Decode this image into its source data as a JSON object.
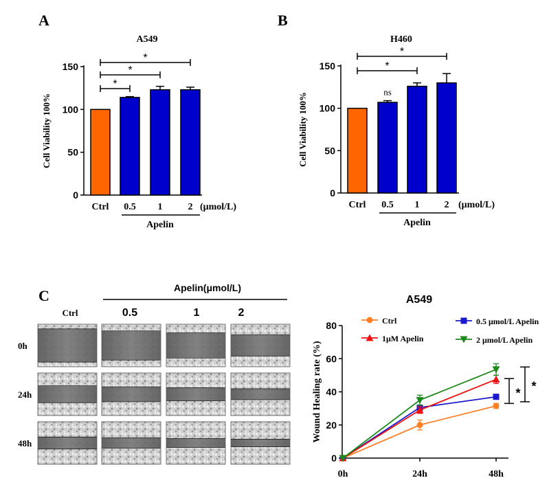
{
  "panels": {
    "a": "A",
    "b": "B",
    "c": "C"
  },
  "colors": {
    "ctrl_bar": "#ff6600",
    "apelin_bar": "#0000cc",
    "ctrl_line": "#ff7f27",
    "apelin_05": "#1a1acc",
    "apelin_1": "#ee1111",
    "apelin_2": "#1a8a1a"
  },
  "chart_data": [
    {
      "type": "bar",
      "title": "A549",
      "ylabel": "Cell Viability  100%",
      "ylim": [
        0,
        150
      ],
      "yticks": [
        "0",
        "50",
        "100",
        "150"
      ],
      "categories": [
        "Ctrl",
        "0.5",
        "1",
        "2"
      ],
      "unit": "(μmol/L)",
      "group_label": "Apelin",
      "values": [
        100,
        114,
        123,
        123
      ],
      "errors": [
        0,
        1,
        4,
        3
      ],
      "significance": [
        {
          "from": 0,
          "to": 1,
          "label": "*"
        },
        {
          "from": 0,
          "to": 2,
          "label": "*"
        },
        {
          "from": 0,
          "to": 3,
          "label": "*"
        }
      ]
    },
    {
      "type": "bar",
      "title": "H460",
      "ylabel": "Cell Viability  100%",
      "ylim": [
        0,
        150
      ],
      "yticks": [
        "0",
        "50",
        "100",
        "150"
      ],
      "categories": [
        "Ctrl",
        "0.5",
        "1",
        "2"
      ],
      "unit": "(μmol/L)",
      "group_label": "Apelin",
      "values": [
        100,
        107,
        126,
        130
      ],
      "errors": [
        0,
        2,
        4,
        11
      ],
      "value_labels": [
        "",
        "ns",
        "",
        ""
      ],
      "significance": [
        {
          "from": 0,
          "to": 2,
          "label": "*"
        },
        {
          "from": 0,
          "to": 3,
          "label": "*"
        }
      ]
    },
    {
      "type": "line",
      "title": "A549",
      "ylabel": "Wound Healing rate (%)",
      "ylim": [
        0,
        80
      ],
      "yticks": [
        "0",
        "20",
        "40",
        "60",
        "80"
      ],
      "x": [
        "0h",
        "24h",
        "48h"
      ],
      "series": [
        {
          "name": "Ctrl",
          "values": [
            0,
            20,
            31.5
          ],
          "errors": [
            0,
            3,
            1.5
          ],
          "marker": "circle"
        },
        {
          "name": "0.5 μmol/L Apelin",
          "values": [
            0,
            30.5,
            37
          ],
          "errors": [
            0,
            1.5,
            1
          ],
          "marker": "square"
        },
        {
          "name": "1μM   Apelin",
          "values": [
            0,
            29,
            47.5
          ],
          "errors": [
            0,
            2,
            2.5
          ],
          "marker": "triangle-up"
        },
        {
          "name": "2 μmol/L Apelin",
          "values": [
            0,
            35,
            53.5
          ],
          "errors": [
            0,
            3,
            3.5
          ],
          "marker": "triangle-down"
        }
      ],
      "significance": [
        {
          "label": "*",
          "range": [
            33,
            48
          ]
        },
        {
          "label": "*",
          "range": [
            34,
            55
          ]
        }
      ]
    }
  ],
  "micrograph": {
    "group_header": "Apelin(μmol/L)",
    "columns": [
      "Ctrl",
      "0.5",
      "1",
      "2"
    ],
    "rows": [
      {
        "label": "0h",
        "gap": 0.78
      },
      {
        "label": "24h",
        "gap": 0.4
      },
      {
        "label": "48h",
        "gap": 0.28
      }
    ]
  }
}
